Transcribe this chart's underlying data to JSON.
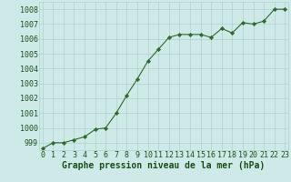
{
  "x": [
    0,
    1,
    2,
    3,
    4,
    5,
    6,
    7,
    8,
    9,
    10,
    11,
    12,
    13,
    14,
    15,
    16,
    17,
    18,
    19,
    20,
    21,
    22,
    23
  ],
  "y": [
    998.6,
    999.0,
    999.0,
    999.2,
    999.4,
    999.9,
    1000.0,
    1001.0,
    1002.2,
    1003.3,
    1004.5,
    1005.3,
    1006.1,
    1006.3,
    1006.3,
    1006.3,
    1006.1,
    1006.7,
    1006.4,
    1007.1,
    1007.0,
    1007.2,
    1008.0,
    1008.0
  ],
  "ylim": [
    998.5,
    1008.5
  ],
  "yticks": [
    999,
    1000,
    1001,
    1002,
    1003,
    1004,
    1005,
    1006,
    1007,
    1008
  ],
  "xticks": [
    0,
    1,
    2,
    3,
    4,
    5,
    6,
    7,
    8,
    9,
    10,
    11,
    12,
    13,
    14,
    15,
    16,
    17,
    18,
    19,
    20,
    21,
    22,
    23
  ],
  "xlabel": "Graphe pression niveau de la mer (hPa)",
  "line_color": "#2d6a2d",
  "marker": "D",
  "marker_size": 2.2,
  "bg_color": "#ceeae8",
  "grid_color": "#b0d0ce",
  "tick_label_color": "#1a4f1a",
  "xlabel_color": "#1a4f1a",
  "xlabel_fontsize": 7.0,
  "tick_fontsize": 6.0
}
